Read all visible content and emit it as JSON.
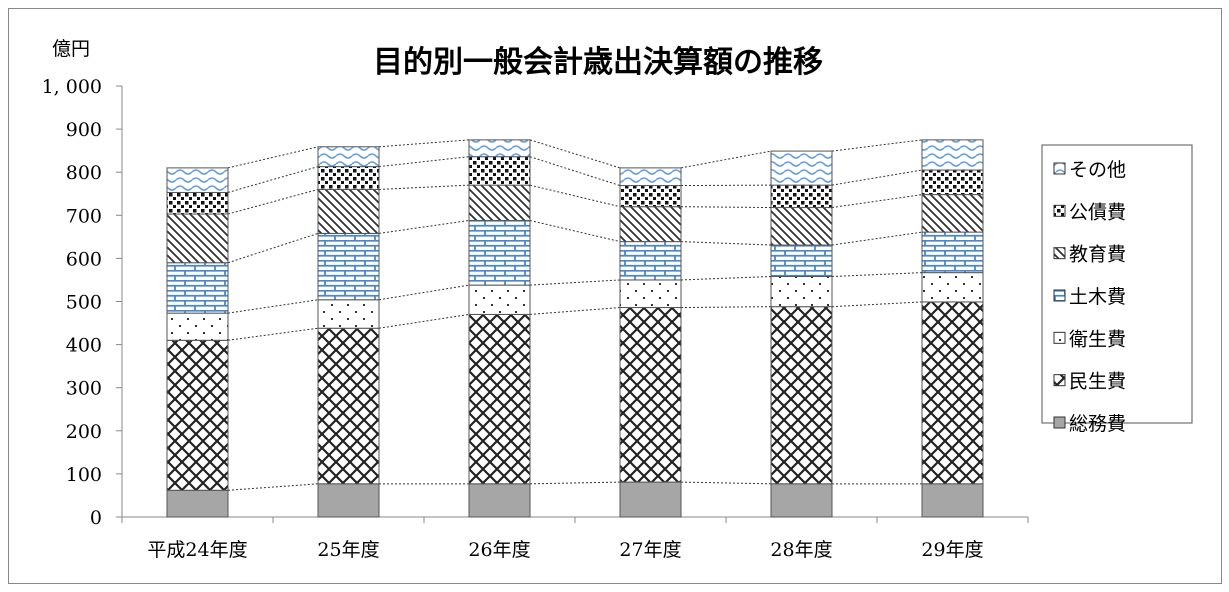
{
  "chart_data": {
    "type": "bar",
    "stacked": true,
    "title": "目的別一般会計歳出決算額の推移",
    "ylabel": "億円",
    "ylim": [
      0,
      1000
    ],
    "yticks": [
      0,
      100,
      200,
      300,
      400,
      500,
      600,
      700,
      800,
      900,
      1000
    ],
    "ytick_labels": [
      "0",
      "100",
      "200",
      "300",
      "400",
      "500",
      "600",
      "700",
      "800",
      "900",
      "1, 000"
    ],
    "categories": [
      "平成24年度",
      "25年度",
      "26年度",
      "27年度",
      "28年度",
      "29年度"
    ],
    "legend_position": "right",
    "series_lines": "dotted connectors between stack segment tops",
    "series": [
      {
        "name": "総務費",
        "values": [
          62,
          77,
          77,
          81,
          77,
          77
        ],
        "pattern": "solid-gray"
      },
      {
        "name": "民生費",
        "values": [
          348,
          361,
          393,
          405,
          411,
          422
        ],
        "pattern": "crosshatch"
      },
      {
        "name": "衛生費",
        "values": [
          63,
          66,
          68,
          64,
          70,
          68
        ],
        "pattern": "dots"
      },
      {
        "name": "土木費",
        "values": [
          117,
          154,
          150,
          89,
          73,
          94
        ],
        "pattern": "brick-blue"
      },
      {
        "name": "教育費",
        "values": [
          113,
          102,
          82,
          81,
          87,
          87
        ],
        "pattern": "diagonal"
      },
      {
        "name": "公債費",
        "values": [
          50,
          53,
          66,
          49,
          52,
          57
        ],
        "pattern": "dense-dots"
      },
      {
        "name": "その他",
        "values": [
          57,
          46,
          39,
          41,
          79,
          70
        ],
        "pattern": "wave-blue"
      }
    ]
  }
}
